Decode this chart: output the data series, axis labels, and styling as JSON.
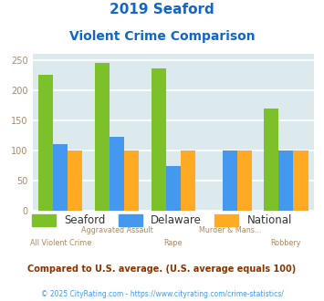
{
  "title_line1": "2019 Seaford",
  "title_line2": "Violent Crime Comparison",
  "cat_top": [
    "",
    "Aggravated Assault",
    "",
    "Murder & Mans...",
    ""
  ],
  "cat_bot": [
    "All Violent Crime",
    "",
    "Rape",
    "",
    "Robbery"
  ],
  "seaford": [
    225,
    246,
    236,
    0,
    170
  ],
  "delaware": [
    111,
    122,
    75,
    100,
    100
  ],
  "national": [
    100,
    100,
    100,
    100,
    100
  ],
  "seaford_color": "#7cc12a",
  "delaware_color": "#4499ee",
  "national_color": "#ffaa22",
  "bg_color": "#ddeaed",
  "ylim": [
    0,
    260
  ],
  "yticks": [
    0,
    50,
    100,
    150,
    200,
    250
  ],
  "footnote": "Compared to U.S. average. (U.S. average equals 100)",
  "copyright": "© 2025 CityRating.com - https://www.cityrating.com/crime-statistics/",
  "title_color": "#1166cc",
  "footnote_color": "#883300",
  "copyright_color": "#4499ee",
  "grid_color": "#ffffff",
  "tick_color": "#aa8866"
}
